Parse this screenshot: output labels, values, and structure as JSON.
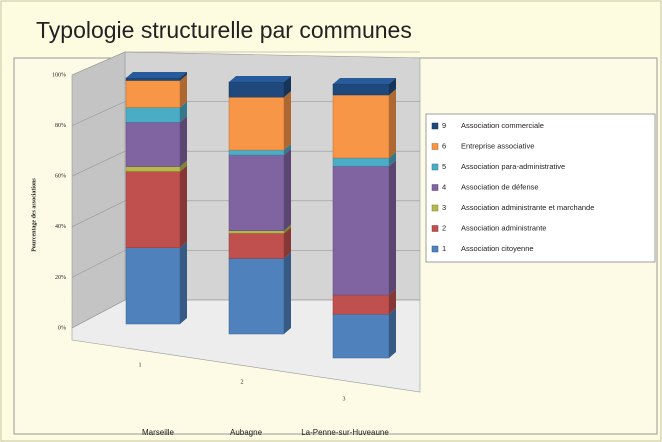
{
  "chart_data": {
    "type": "bar3d_stacked",
    "title": "Typologie structurelle par communes",
    "ylabel": "Pourcentage des associations",
    "categories": [
      "1",
      "2",
      "3"
    ],
    "category_names": [
      "Marseille",
      "Aubagne",
      "La-Penne-sur-Huveaune"
    ],
    "ylim": [
      0,
      100
    ],
    "yticks": [
      {
        "value": 0,
        "label": "0%"
      },
      {
        "value": 20,
        "label": "20%"
      },
      {
        "value": 40,
        "label": "40%"
      },
      {
        "value": 60,
        "label": "60%"
      },
      {
        "value": 80,
        "label": "80%"
      },
      {
        "value": 100,
        "label": "100%"
      }
    ],
    "grid": true,
    "legend": "right",
    "series": [
      {
        "code": "1",
        "name": "Association citoyenne",
        "color": "#4f81bd",
        "values": [
          31,
          30,
          16
        ]
      },
      {
        "code": "2",
        "name": "Association administrante",
        "color": "#c0504d",
        "values": [
          31,
          10,
          7
        ]
      },
      {
        "code": "3",
        "name": "Association administrante et marchande",
        "color": "#b5b948",
        "values": [
          2,
          1,
          0
        ]
      },
      {
        "code": "4",
        "name": "Association de défense",
        "color": "#8064a2",
        "values": [
          18,
          30,
          47
        ]
      },
      {
        "code": "5",
        "name": "Association para-administrative",
        "color": "#4bacc6",
        "values": [
          6,
          2,
          3
        ]
      },
      {
        "code": "6",
        "name": "Entreprise associative",
        "color": "#f79646",
        "values": [
          11,
          21,
          23
        ]
      },
      {
        "code": "9",
        "name": "Association commerciale",
        "color": "#1f497d",
        "values": [
          1,
          6,
          4
        ]
      }
    ]
  }
}
